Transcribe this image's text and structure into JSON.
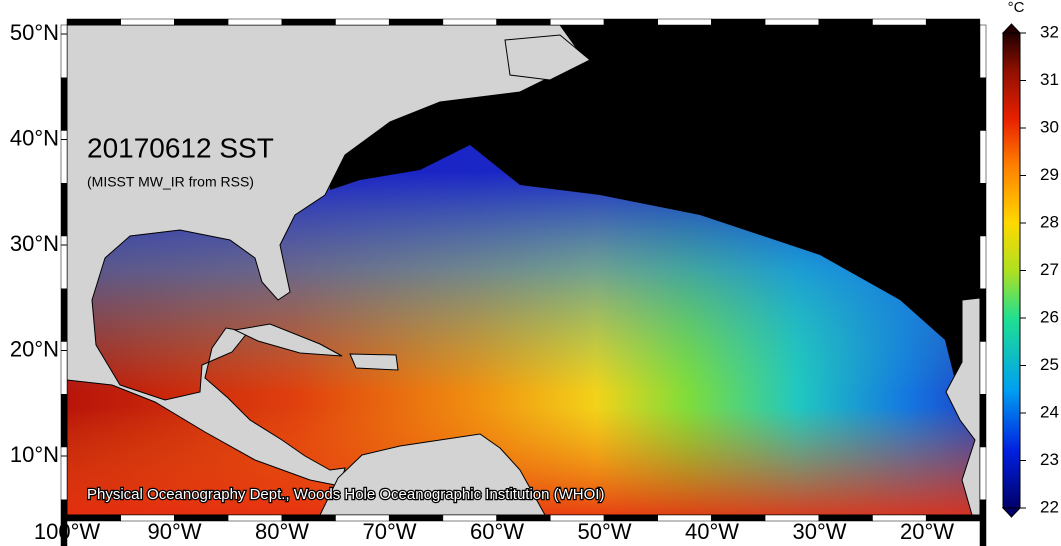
{
  "map": {
    "title": "20170612 SST",
    "subtitle": "(MISST MW_IR from RSS)",
    "credit": "Physical Oceanography Dept., Woods Hole Oceanographic Institution (WHOI)",
    "lat_ticks": [
      {
        "value": 50,
        "label": "50°N"
      },
      {
        "value": 40,
        "label": "40°N"
      },
      {
        "value": 30,
        "label": "30°N"
      },
      {
        "value": 20,
        "label": "20°N"
      },
      {
        "value": 10,
        "label": "10°N"
      }
    ],
    "lon_ticks": [
      {
        "value": -100,
        "label": "100°W"
      },
      {
        "value": -90,
        "label": "90°W"
      },
      {
        "value": -80,
        "label": "80°W"
      },
      {
        "value": -70,
        "label": "70°W"
      },
      {
        "value": -60,
        "label": "60°W"
      },
      {
        "value": -50,
        "label": "50°W"
      },
      {
        "value": -40,
        "label": "40°W"
      },
      {
        "value": -30,
        "label": "30°W"
      },
      {
        "value": -20,
        "label": "20°W"
      }
    ]
  },
  "colorbar": {
    "unit": "°C",
    "lim": [
      22,
      32
    ],
    "ticks": [
      22,
      23,
      24,
      25,
      26,
      27,
      28,
      29,
      30,
      31,
      32
    ]
  }
}
